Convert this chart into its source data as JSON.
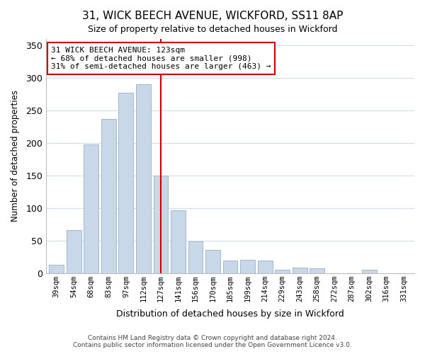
{
  "title": "31, WICK BEECH AVENUE, WICKFORD, SS11 8AP",
  "subtitle": "Size of property relative to detached houses in Wickford",
  "xlabel": "Distribution of detached houses by size in Wickford",
  "ylabel": "Number of detached properties",
  "bar_labels": [
    "39sqm",
    "54sqm",
    "68sqm",
    "83sqm",
    "97sqm",
    "112sqm",
    "127sqm",
    "141sqm",
    "156sqm",
    "170sqm",
    "185sqm",
    "199sqm",
    "214sqm",
    "229sqm",
    "243sqm",
    "258sqm",
    "272sqm",
    "287sqm",
    "302sqm",
    "316sqm",
    "331sqm"
  ],
  "bar_values": [
    13,
    66,
    198,
    237,
    277,
    290,
    150,
    96,
    49,
    35,
    19,
    20,
    19,
    5,
    8,
    7,
    0,
    0,
    5,
    0,
    0
  ],
  "bar_color": "#c8d8e8",
  "bar_edge_color": "#a0b8cc",
  "vline_x_index": 6,
  "vline_color": "#cc0000",
  "annotation_line1": "31 WICK BEECH AVENUE: 123sqm",
  "annotation_line2": "← 68% of detached houses are smaller (998)",
  "annotation_line3": "31% of semi-detached houses are larger (463) →",
  "annotation_box_color": "#ffffff",
  "annotation_border_color": "#cc0000",
  "ylim": [
    0,
    360
  ],
  "yticks": [
    0,
    50,
    100,
    150,
    200,
    250,
    300,
    350
  ],
  "footer1": "Contains HM Land Registry data © Crown copyright and database right 2024.",
  "footer2": "Contains public sector information licensed under the Open Government Licence v3.0.",
  "background_color": "#ffffff",
  "grid_color": "#d0dde8"
}
